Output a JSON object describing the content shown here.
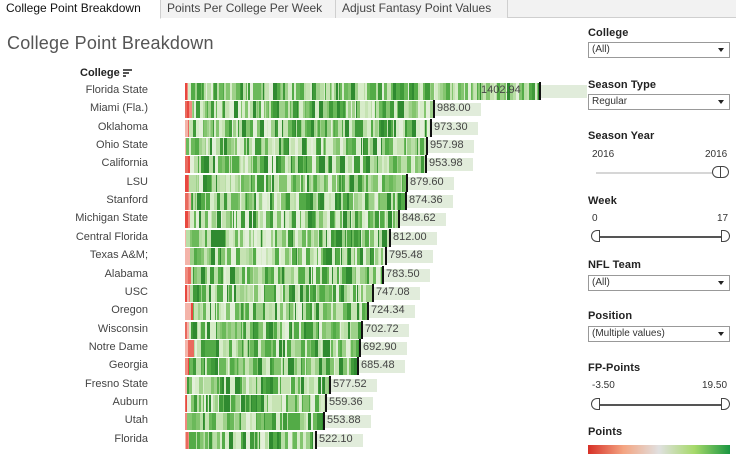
{
  "tabs": [
    {
      "label": "College Point Breakdown",
      "active": true
    },
    {
      "label": "Points Per College Per Week",
      "active": false
    },
    {
      "label": "Adjust Fantasy Point Values",
      "active": false
    }
  ],
  "title": "College Point Breakdown",
  "column_header": "College",
  "chart_data": {
    "type": "bar",
    "title": "College Point Breakdown",
    "xlabel": "",
    "ylabel": "College",
    "color_legend": "Points",
    "color_range": [
      "#d73027",
      "#1a9641"
    ],
    "categories": [
      "Florida State",
      "Miami (Fla.)",
      "Oklahoma",
      "Ohio State",
      "California",
      "LSU",
      "Stanford",
      "Michigan State",
      "Central Florida",
      "Texas A&M;",
      "Alabama",
      "USC",
      "Oregon",
      "Wisconsin",
      "Notre Dame",
      "Georgia",
      "Fresno State",
      "Auburn",
      "Utah",
      "Florida"
    ],
    "values": [
      1402.94,
      988.0,
      973.3,
      957.98,
      953.98,
      879.6,
      874.36,
      848.62,
      812.0,
      795.48,
      783.5,
      747.08,
      724.34,
      702.72,
      692.9,
      685.48,
      577.52,
      559.36,
      553.88,
      522.1
    ],
    "value_labels": [
      "1402.94",
      "988.00",
      "973.30",
      "957.98",
      "953.98",
      "879.60",
      "874.36",
      "848.62",
      "812.00",
      "795.48",
      "783.50",
      "747.08",
      "724.34",
      "702.72",
      "692.90",
      "685.48",
      "577.52",
      "559.36",
      "553.88",
      "522.10"
    ],
    "xlim": [
      0,
      1420
    ]
  },
  "filters": {
    "college": {
      "label": "College",
      "value": "(All)"
    },
    "season_type": {
      "label": "Season Type",
      "value": "Regular"
    },
    "season_year": {
      "label": "Season Year",
      "min": "2016",
      "max": "2016"
    },
    "week": {
      "label": "Week",
      "min": "0",
      "max": "17"
    },
    "nfl_team": {
      "label": "NFL Team",
      "value": "(All)"
    },
    "position": {
      "label": "Position",
      "value": "(Multiple values)"
    },
    "fp_points": {
      "label": "FP-Points",
      "min": "-3.50",
      "max": "19.50"
    },
    "points_legend": {
      "label": "Points"
    }
  },
  "icons": {
    "sort": "sort-descending-icon",
    "caret": "caret-down-icon"
  }
}
